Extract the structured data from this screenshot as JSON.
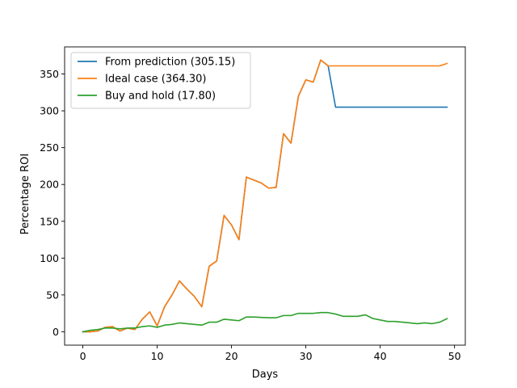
{
  "chart_data": {
    "type": "line",
    "xlabel": "Days",
    "ylabel": "Percentage ROI",
    "xlim": [
      -2.45,
      51.45
    ],
    "ylim": [
      -18.2,
      386.8
    ],
    "xticks": [
      0,
      10,
      20,
      30,
      40,
      50
    ],
    "yticks": [
      0,
      50,
      100,
      150,
      200,
      250,
      300,
      350
    ],
    "grid": false,
    "legend_position": "top-left",
    "series": [
      {
        "name": "From prediction (305.15)",
        "color": "#1f77b4",
        "x": [
          0,
          1,
          2,
          3,
          4,
          5,
          6,
          7,
          8,
          9,
          10,
          11,
          12,
          13,
          14,
          15,
          16,
          17,
          18,
          19,
          20,
          21,
          22,
          23,
          24,
          25,
          26,
          27,
          28,
          29,
          30,
          31,
          32,
          33,
          34,
          35,
          36,
          37,
          38,
          39,
          40,
          41,
          42,
          43,
          44,
          45,
          46,
          47,
          48,
          49
        ],
        "values": [
          0,
          0,
          1,
          6,
          7,
          1,
          5,
          3,
          17,
          27,
          8,
          34,
          50,
          69,
          58,
          48,
          34,
          89,
          96,
          158,
          145,
          125,
          210,
          206,
          202,
          195,
          196,
          269,
          256,
          320,
          342,
          339,
          369,
          361,
          305,
          305,
          305,
          305,
          305,
          305,
          305,
          305,
          305,
          305,
          305,
          305,
          305,
          305,
          305,
          305
        ]
      },
      {
        "name": "Ideal case (364.30)",
        "color": "#ff7f0e",
        "x": [
          0,
          1,
          2,
          3,
          4,
          5,
          6,
          7,
          8,
          9,
          10,
          11,
          12,
          13,
          14,
          15,
          16,
          17,
          18,
          19,
          20,
          21,
          22,
          23,
          24,
          25,
          26,
          27,
          28,
          29,
          30,
          31,
          32,
          33,
          34,
          35,
          36,
          37,
          38,
          39,
          40,
          41,
          42,
          43,
          44,
          45,
          46,
          47,
          48,
          49
        ],
        "values": [
          0,
          0,
          1,
          6,
          7,
          1,
          5,
          3,
          17,
          27,
          8,
          34,
          50,
          69,
          58,
          48,
          34,
          89,
          96,
          158,
          145,
          125,
          210,
          206,
          202,
          195,
          196,
          269,
          256,
          320,
          342,
          339,
          369,
          361,
          361,
          361,
          361,
          361,
          361,
          361,
          361,
          361,
          361,
          361,
          361,
          361,
          361,
          361,
          361,
          364.3
        ]
      },
      {
        "name": "Buy and hold (17.80)",
        "color": "#2ca02c",
        "x": [
          0,
          1,
          2,
          3,
          4,
          5,
          6,
          7,
          8,
          9,
          10,
          11,
          12,
          13,
          14,
          15,
          16,
          17,
          18,
          19,
          20,
          21,
          22,
          23,
          24,
          25,
          26,
          27,
          28,
          29,
          30,
          31,
          32,
          33,
          34,
          35,
          36,
          37,
          38,
          39,
          40,
          41,
          42,
          43,
          44,
          45,
          46,
          47,
          48,
          49
        ],
        "values": [
          0,
          2,
          3,
          5,
          5,
          4,
          5,
          5,
          7,
          8,
          6,
          9,
          10,
          12,
          11,
          10,
          9,
          13,
          13,
          17,
          16,
          15,
          20,
          20,
          19.5,
          19,
          19,
          22,
          22,
          25,
          25,
          25,
          26,
          26,
          24,
          21,
          21,
          21,
          23,
          18,
          16,
          14,
          14,
          13,
          12,
          11,
          12,
          11,
          13,
          17.8
        ]
      }
    ]
  }
}
